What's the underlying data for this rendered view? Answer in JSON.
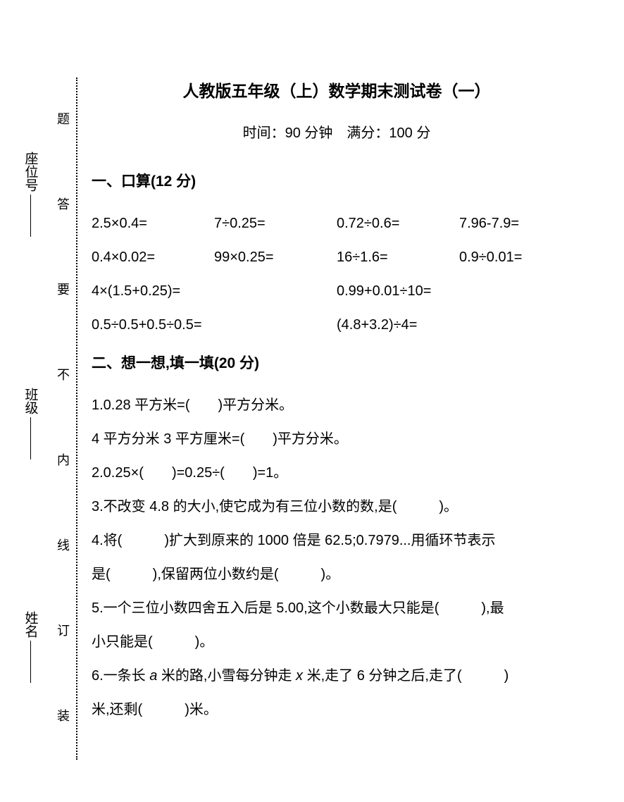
{
  "header": {
    "title": "人教版五年级（上）数学期末测试卷（一）",
    "subtitle": "时间：90 分钟　满分：100 分"
  },
  "binding": {
    "chars": [
      "题",
      "答",
      "要",
      "不",
      "内",
      "线",
      "订",
      "装"
    ]
  },
  "student": {
    "fields": [
      "座位号",
      "班级",
      "姓名"
    ]
  },
  "section1": {
    "header": "一、口算(12 分)",
    "row1": [
      "2.5×0.4=",
      "7÷0.25=",
      "0.72÷0.6=",
      "7.96-7.9="
    ],
    "row2": [
      "0.4×0.02=",
      "99×0.25=",
      "16÷1.6=",
      "0.9÷0.01="
    ],
    "row3": [
      "4×(1.5+0.25)=",
      "0.99+0.01÷10="
    ],
    "row4": [
      "0.5÷0.5+0.5÷0.5=",
      "(4.8+3.2)÷4="
    ]
  },
  "section2": {
    "header": "二、想一想,填一填(20 分)",
    "q1a": "1.0.28 平方米=(　　)平方分米。",
    "q1b": "4 平方分米 3 平方厘米=(　　)平方分米。",
    "q2": "2.0.25×(　　)=0.25÷(　　)=1。",
    "q3": "3.不改变 4.8 的大小,使它成为有三位小数的数,是(　　　)。",
    "q4a": "4.将(　　　)扩大到原来的 1000 倍是 62.5;0.7979...用循环节表示",
    "q4b": "是(　　　),保留两位小数约是(　　　)。",
    "q5a": "5.一个三位小数四舍五入后是 5.00,这个小数最大只能是(　　　),最",
    "q5b": "小只能是(　　　)。",
    "q6a_pre": "6.一条长 ",
    "q6a_var1": "a",
    "q6a_mid": " 米的路,小雪每分钟走 ",
    "q6a_var2": "x",
    "q6a_post": " 米,走了 6 分钟之后,走了(　　　)",
    "q6b": "米,还剩(　　　)米。"
  }
}
